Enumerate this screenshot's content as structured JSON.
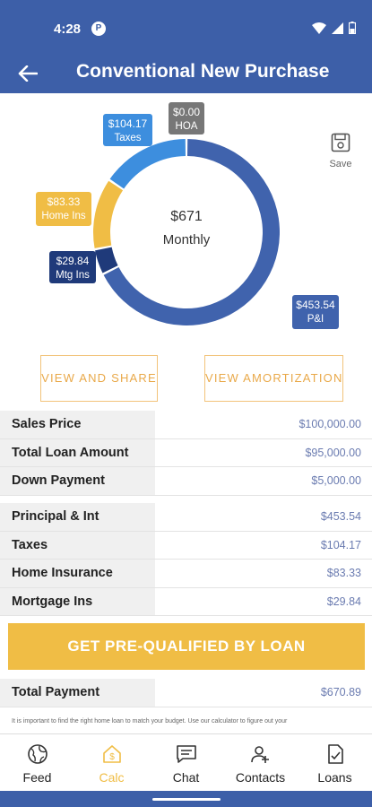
{
  "status_bar": {
    "time": "4:28",
    "app_icon_letter": "P"
  },
  "header": {
    "back_icon": "arrow-left-icon",
    "title": "Conventional New Purchase"
  },
  "save": {
    "label": "Save",
    "icon": "save-icon"
  },
  "chart_data": {
    "type": "pie",
    "center_value": "$671",
    "center_label": "Monthly",
    "slices": [
      {
        "name": "P&I",
        "value": 453.54,
        "label": "$453.54",
        "color": "#4063ad"
      },
      {
        "name": "Mtg Ins",
        "value": 29.84,
        "label": "$29.84",
        "color": "#1f3a7a"
      },
      {
        "name": "Home Ins",
        "value": 83.33,
        "label": "$83.33",
        "color": "#f0bd45"
      },
      {
        "name": "Taxes",
        "value": 104.17,
        "label": "$104.17",
        "color": "#3d8ede"
      },
      {
        "name": "HOA",
        "value": 0.0,
        "label": "$0.00",
        "color": "#777777"
      }
    ]
  },
  "actions": {
    "view_share": "VIEW AND SHARE",
    "view_amortization": "VIEW AMORTIZATION"
  },
  "loan_table": [
    {
      "label": "Sales Price",
      "value": "$100,000.00"
    },
    {
      "label": "Total Loan Amount",
      "value": "$95,000.00"
    },
    {
      "label": "Down Payment",
      "value": "$5,000.00"
    }
  ],
  "payment_table": [
    {
      "label": "Principal & Int",
      "value": "$453.54"
    },
    {
      "label": "Taxes",
      "value": "$104.17"
    },
    {
      "label": "Home Insurance",
      "value": "$83.33"
    },
    {
      "label": "Mortgage Ins",
      "value": "$29.84"
    }
  ],
  "cta": {
    "label": "GET PRE-QUALIFIED BY LOAN"
  },
  "total": {
    "label": "Total Payment",
    "value": "$670.89"
  },
  "disclaimer": "It is important to find the right home loan to match your budget. Use our calculator to figure out your",
  "nav": [
    {
      "label": "Feed",
      "icon": "globe-icon"
    },
    {
      "label": "Calc",
      "icon": "calc-house-icon"
    },
    {
      "label": "Chat",
      "icon": "chat-icon"
    },
    {
      "label": "Contacts",
      "icon": "contacts-icon"
    },
    {
      "label": "Loans",
      "icon": "loans-icon"
    }
  ],
  "colors": {
    "primary": "#3d5fa8",
    "accent": "#f0bd45",
    "value_text": "#6a7bb0"
  }
}
